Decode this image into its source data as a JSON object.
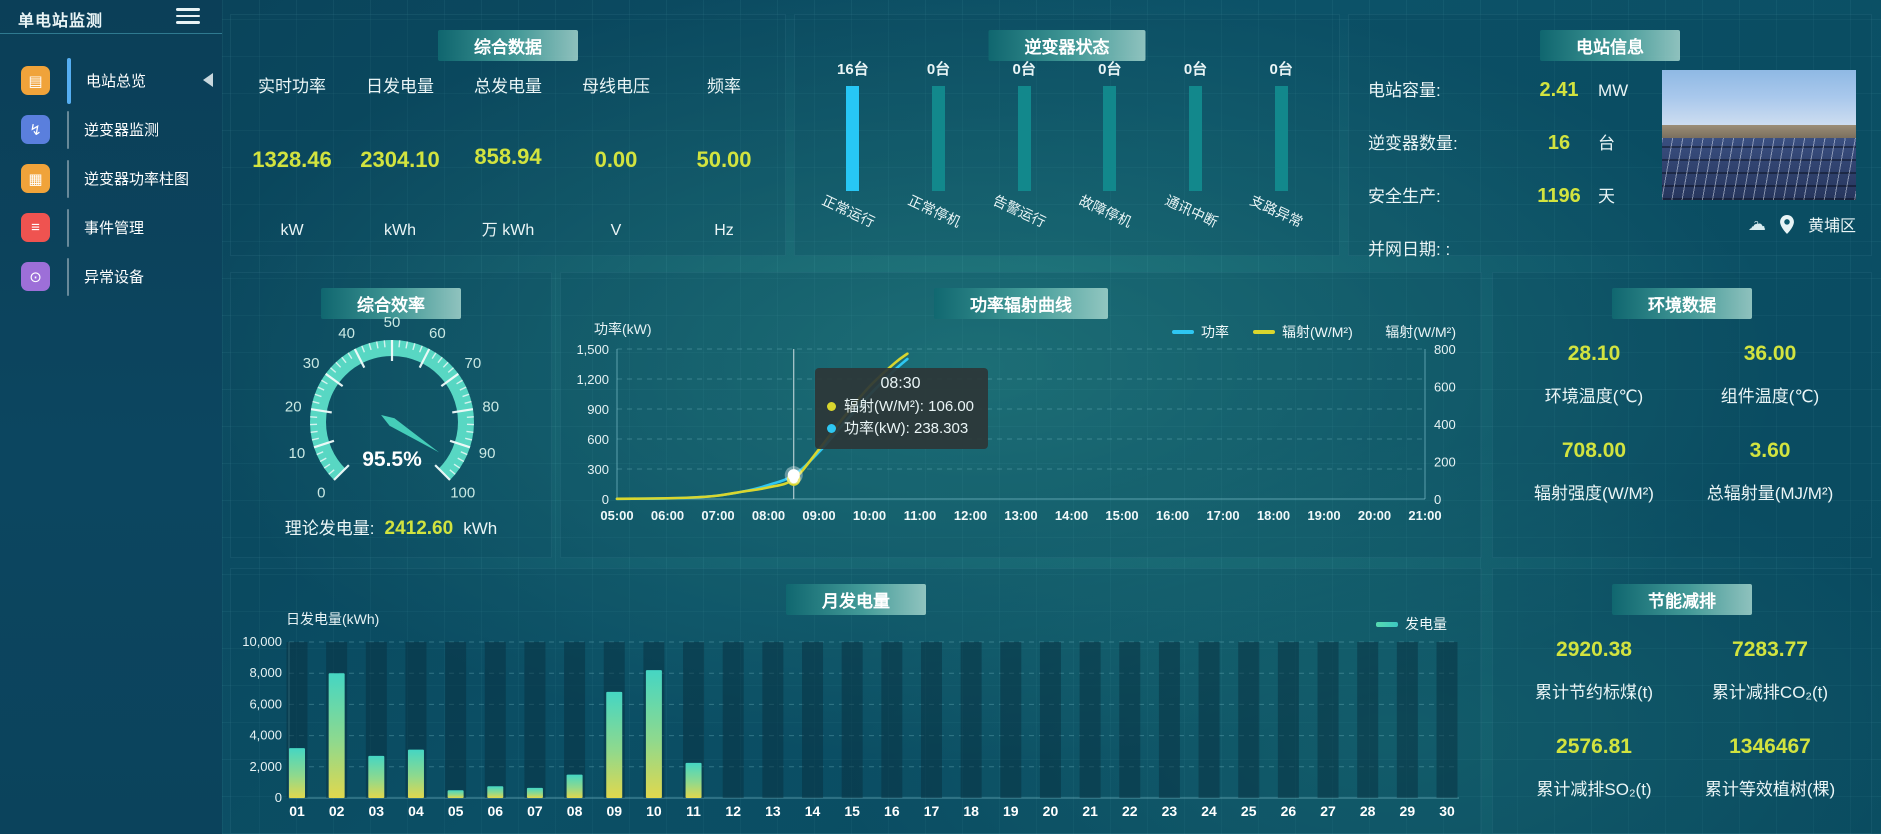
{
  "app": {
    "title": "单电站监测"
  },
  "icons": {
    "hamburger": "menu-toggle",
    "cloud": "☁",
    "cloud_query": "?"
  },
  "sidebar": {
    "items": [
      {
        "label": "电站总览",
        "glyph": "▤",
        "color": "#f0a33a",
        "active": true
      },
      {
        "label": "逆变器监测",
        "glyph": "↯",
        "color": "#5a7fdd",
        "active": false
      },
      {
        "label": "逆变器功率柱图",
        "glyph": "▦",
        "color": "#f0a33a",
        "active": false
      },
      {
        "label": "事件管理",
        "glyph": "≡",
        "color": "#ef5350",
        "active": false
      },
      {
        "label": "异常设备",
        "glyph": "⊙",
        "color": "#9d6fd8",
        "active": false
      }
    ]
  },
  "summary": {
    "title": "综合数据",
    "metrics": [
      {
        "label": "实时功率",
        "value": "1328.46",
        "unit": "kW"
      },
      {
        "label": "日发电量",
        "value": "2304.10",
        "unit": "kWh"
      },
      {
        "label": "总发电量",
        "value": "858.94",
        "unit": "万 kWh"
      },
      {
        "label": "母线电压",
        "value": "0.00",
        "unit": "V"
      },
      {
        "label": "频率",
        "value": "50.00",
        "unit": "Hz"
      }
    ]
  },
  "inverter_status": {
    "title": "逆变器状态",
    "unit": "台",
    "states": [
      {
        "label": "正常运行",
        "count": 16,
        "highlight": true
      },
      {
        "label": "正常停机",
        "count": 0,
        "highlight": false
      },
      {
        "label": "告警运行",
        "count": 0,
        "highlight": false
      },
      {
        "label": "故障停机",
        "count": 0,
        "highlight": false
      },
      {
        "label": "通讯中断",
        "count": 0,
        "highlight": false
      },
      {
        "label": "支路异常",
        "count": 0,
        "highlight": false
      }
    ]
  },
  "station_info": {
    "title": "电站信息",
    "rows": [
      {
        "label": "电站容量:",
        "value": "2.41",
        "unit": "MW"
      },
      {
        "label": "逆变器数量:",
        "value": "16",
        "unit": "台"
      },
      {
        "label": "安全生产:",
        "value": "1196",
        "unit": "天"
      },
      {
        "label": "并网日期:  :",
        "value": "",
        "unit": ""
      }
    ],
    "location": "黄埔区"
  },
  "efficiency": {
    "title": "综合效率",
    "value_label": "95.5%",
    "theory_label": "理论发电量:",
    "theory_value": "2412.60",
    "theory_unit": "kWh"
  },
  "curve": {
    "title": "功率辐射曲线",
    "tooltip": {
      "time": "08:30",
      "rows": [
        {
          "text": "辐射(W/M²): 106.00",
          "color": "#d9d62e"
        },
        {
          "text": "功率(kW): 238.303",
          "color": "#2ec7f2"
        }
      ]
    }
  },
  "environment": {
    "title": "环境数据",
    "metrics": [
      {
        "value": "28.10",
        "label": "环境温度(℃)"
      },
      {
        "value": "36.00",
        "label": "组件温度(℃)"
      },
      {
        "value": "708.00",
        "label": "辐射强度(W/M²)"
      },
      {
        "value": "3.60",
        "label": "总辐射量(MJ/M²)"
      }
    ]
  },
  "monthly": {
    "title": "月发电量"
  },
  "eco": {
    "title": "节能减排",
    "metrics": [
      {
        "value": "2920.38",
        "label": "累计节约标煤(t)"
      },
      {
        "value": "7283.77",
        "label": "累计减排CO₂(t)"
      },
      {
        "value": "2576.81",
        "label": "累计减排SO₂(t)"
      },
      {
        "value": "1346467",
        "label": "累计等效植树(棵)"
      }
    ]
  },
  "colors": {
    "accent_value": "#d2e33f",
    "power_line": "#2ec7f2",
    "radiation_line": "#d9d62e",
    "highlight_bar": "#27c7f5",
    "state_bar": "#12888c",
    "gauge": "#58d7c3",
    "bar_top": "#45d6c3",
    "bar_bottom": "#e0d84e"
  },
  "chart_data": [
    {
      "id": "efficiency_gauge",
      "type": "gauge",
      "min": 0,
      "max": 100,
      "value": 95.5,
      "major_tick": 10,
      "minor_tick": 2,
      "label": "95.5%"
    },
    {
      "id": "power_radiation_curve",
      "type": "line",
      "x_tick_labels": [
        "05:00",
        "06:00",
        "07:00",
        "08:00",
        "09:00",
        "10:00",
        "11:00",
        "12:00",
        "13:00",
        "14:00",
        "15:00",
        "16:00",
        "17:00",
        "18:00",
        "19:00",
        "20:00",
        "21:00"
      ],
      "x_range": [
        5,
        21
      ],
      "left_axis": {
        "title": "功率(kW)",
        "max": 1500,
        "tick_step": 300,
        "tick_labels": [
          "0",
          "300",
          "600",
          "900",
          "1,200",
          "1,500"
        ]
      },
      "right_axis": {
        "title": "辐射(W/M²)",
        "max": 800,
        "tick_step": 200,
        "tick_labels": [
          "0",
          "200",
          "400",
          "600",
          "800"
        ]
      },
      "legend": [
        {
          "name": "功率",
          "color": "#2ec7f2"
        },
        {
          "name": "辐射(W/M²)",
          "color": "#d9d62e"
        }
      ],
      "series": [
        {
          "name": "功率",
          "axis": "left",
          "color": "#2ec7f2",
          "points": [
            [
              5,
              2
            ],
            [
              5.5,
              3
            ],
            [
              6,
              6
            ],
            [
              6.5,
              14
            ],
            [
              7,
              35
            ],
            [
              7.5,
              75
            ],
            [
              8,
              140
            ],
            [
              8.5,
              238.3
            ],
            [
              9,
              470
            ],
            [
              9.5,
              760
            ],
            [
              10,
              1040
            ],
            [
              10.5,
              1290
            ],
            [
              10.75,
              1400
            ]
          ]
        },
        {
          "name": "辐射(W/M²)",
          "axis": "right",
          "color": "#d9d62e",
          "points": [
            [
              5,
              1
            ],
            [
              5.5,
              2
            ],
            [
              6,
              4
            ],
            [
              6.5,
              8
            ],
            [
              7,
              18
            ],
            [
              7.5,
              40
            ],
            [
              8,
              62
            ],
            [
              8.5,
              106
            ],
            [
              9,
              265
            ],
            [
              9.5,
              440
            ],
            [
              10,
              600
            ],
            [
              10.5,
              725
            ],
            [
              10.75,
              775
            ]
          ]
        }
      ],
      "marker": {
        "x": 8.5,
        "power": 238.303,
        "radiation": 106
      }
    },
    {
      "id": "monthly_energy",
      "type": "bar",
      "ylabel": "日发电量(kWh)",
      "ymax": 10000,
      "ytick_step": 2000,
      "ytick_labels": [
        "0",
        "2,000",
        "4,000",
        "6,000",
        "8,000",
        "10,000"
      ],
      "legend": [
        {
          "name": "发电量",
          "color": "#45d6a8"
        }
      ],
      "categories": [
        "01",
        "02",
        "03",
        "04",
        "05",
        "06",
        "07",
        "08",
        "09",
        "10",
        "11",
        "12",
        "13",
        "14",
        "15",
        "16",
        "17",
        "18",
        "19",
        "20",
        "21",
        "22",
        "23",
        "24",
        "25",
        "26",
        "27",
        "28",
        "29",
        "30"
      ],
      "values": [
        3200,
        8000,
        2700,
        3100,
        500,
        750,
        650,
        1500,
        6800,
        8200,
        2250,
        0,
        0,
        0,
        0,
        0,
        0,
        0,
        0,
        0,
        0,
        0,
        0,
        0,
        0,
        0,
        0,
        0,
        0,
        0
      ]
    },
    {
      "id": "inverter_status_bars",
      "type": "bar",
      "categories": [
        "正常运行",
        "正常停机",
        "告警运行",
        "故障停机",
        "通讯中断",
        "支路异常"
      ],
      "values": [
        16,
        0,
        0,
        0,
        0,
        0
      ],
      "unit": "台"
    }
  ]
}
